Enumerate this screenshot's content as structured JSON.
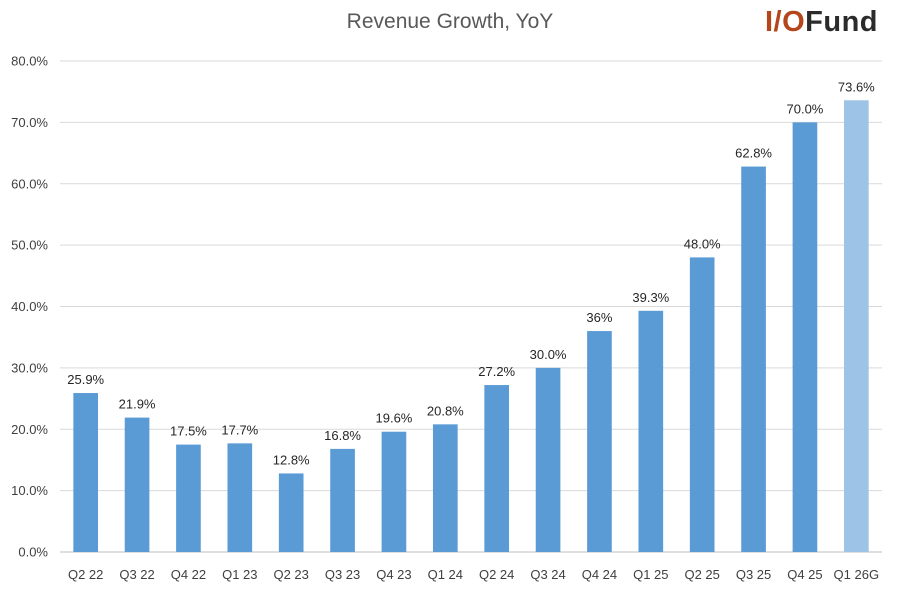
{
  "logo": {
    "io": "I/O",
    "fund": "Fund"
  },
  "chart_data": {
    "type": "bar",
    "title": "Revenue Growth, YoY",
    "xlabel": "",
    "ylabel": "",
    "ylim": [
      0,
      80
    ],
    "yticks": [
      "0.0%",
      "10.0%",
      "20.0%",
      "30.0%",
      "40.0%",
      "50.0%",
      "60.0%",
      "70.0%",
      "80.0%"
    ],
    "grid": true,
    "categories": [
      "Q2 22",
      "Q3 22",
      "Q4 22",
      "Q1 23",
      "Q2 23",
      "Q3 23",
      "Q4 23",
      "Q1 24",
      "Q2 24",
      "Q3 24",
      "Q4 24",
      "Q1 25",
      "Q2 25",
      "Q3 25",
      "Q4 25",
      "Q1 26G"
    ],
    "values": [
      25.9,
      21.9,
      17.5,
      17.7,
      12.8,
      16.8,
      19.6,
      20.8,
      27.2,
      30.0,
      36,
      39.3,
      48.0,
      62.8,
      70.0,
      73.6
    ],
    "labels": [
      "25.9%",
      "21.9%",
      "17.5%",
      "17.7%",
      "12.8%",
      "16.8%",
      "19.6%",
      "20.8%",
      "27.2%",
      "30.0%",
      "36%",
      "39.3%",
      "48.0%",
      "62.8%",
      "70.0%",
      "73.6%"
    ],
    "colors": {
      "actual": "#5b9bd5",
      "guidance": "#9dc3e6",
      "grid": "#d9d9d9"
    },
    "guidance_index": 15
  }
}
